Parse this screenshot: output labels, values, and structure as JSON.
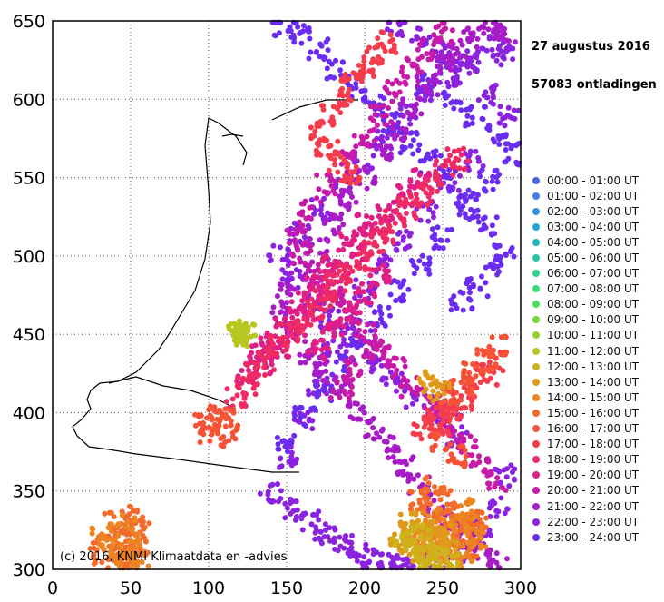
{
  "chart_data": {
    "type": "scatter",
    "title": "",
    "date_label": "27 augustus 2016",
    "count_label": "57083 ontladingen",
    "credit": "(c) 2016, KNMI Klimaatdata en -advies",
    "xlabel": "",
    "ylabel": "",
    "xlim": [
      0,
      300
    ],
    "ylim": [
      300,
      650
    ],
    "x_ticks": [
      "0",
      "50",
      "100",
      "150",
      "200",
      "250",
      "300"
    ],
    "y_ticks": [
      "300",
      "350",
      "400",
      "450",
      "500",
      "550",
      "600",
      "650"
    ],
    "grid": true,
    "grid_style": "dotted",
    "legend_placement": "right",
    "legend": [
      {
        "label": "00:00 - 01:00 UT",
        "color": "#4a63e6"
      },
      {
        "label": "01:00 - 02:00 UT",
        "color": "#3f7ee8"
      },
      {
        "label": "02:00 - 03:00 UT",
        "color": "#2f95e2"
      },
      {
        "label": "03:00 - 04:00 UT",
        "color": "#1ea6d6"
      },
      {
        "label": "04:00 - 05:00 UT",
        "color": "#1cb8bf"
      },
      {
        "label": "05:00 - 06:00 UT",
        "color": "#22c8a2"
      },
      {
        "label": "06:00 - 07:00 UT",
        "color": "#2bd48a"
      },
      {
        "label": "07:00 - 08:00 UT",
        "color": "#36dc70"
      },
      {
        "label": "08:00 - 09:00 UT",
        "color": "#48e15a"
      },
      {
        "label": "09:00 - 10:00 UT",
        "color": "#6fdc3c"
      },
      {
        "label": "10:00 - 11:00 UT",
        "color": "#97d22c"
      },
      {
        "label": "11:00 - 12:00 UT",
        "color": "#b7c71f"
      },
      {
        "label": "12:00 - 13:00 UT",
        "color": "#cfb21a"
      },
      {
        "label": "13:00 - 14:00 UT",
        "color": "#e09a1b"
      },
      {
        "label": "14:00 - 15:00 UT",
        "color": "#ec8421"
      },
      {
        "label": "15:00 - 16:00 UT",
        "color": "#f26b2a"
      },
      {
        "label": "16:00 - 17:00 UT",
        "color": "#f55236"
      },
      {
        "label": "17:00 - 18:00 UT",
        "color": "#f43c4a"
      },
      {
        "label": "18:00 - 19:00 UT",
        "color": "#ef2b64"
      },
      {
        "label": "19:00 - 20:00 UT",
        "color": "#e01f86"
      },
      {
        "label": "20:00 - 21:00 UT",
        "color": "#c81aa8"
      },
      {
        "label": "21:00 - 22:00 UT",
        "color": "#a81cc8"
      },
      {
        "label": "22:00 - 23:00 UT",
        "color": "#8a22df"
      },
      {
        "label": "23:00 - 24:00 UT",
        "color": "#6a2cf0"
      }
    ],
    "series": [
      {
        "color_index": 22,
        "x": [
          220,
          235,
          250,
          265,
          280,
          292,
          270,
          255,
          240,
          225,
          210,
          200,
          190,
          180,
          170,
          160,
          150,
          140,
          155,
          165,
          175,
          185,
          195,
          205,
          215,
          230,
          245,
          260,
          275,
          285,
          290,
          260,
          245,
          232,
          218,
          205,
          192,
          178,
          165,
          152,
          145,
          158,
          172,
          186,
          200,
          212,
          226,
          240,
          254,
          268,
          282,
          288
        ],
        "y": [
          645,
          640,
          630,
          618,
          602,
          590,
          560,
          545,
          528,
          510,
          495,
          478,
          460,
          440,
          418,
          395,
          372,
          350,
          338,
          330,
          322,
          315,
          310,
          306,
          304,
          302,
          305,
          312,
          325,
          340,
          360,
          385,
          400,
          410,
          420,
          432,
          446,
          460,
          472,
          486,
          500,
          515,
          530,
          545,
          560,
          575,
          590,
          605,
          615,
          625,
          635,
          628
        ]
      },
      {
        "color_index": 23,
        "x": [
          240,
          255,
          270,
          285,
          295,
          280,
          265,
          250,
          235,
          222,
          210,
          198,
          186,
          174,
          162,
          150,
          262,
          272,
          282,
          290,
          278,
          266,
          254,
          242,
          230,
          218,
          206,
          194,
          182,
          170,
          158,
          148
        ],
        "y": [
          610,
          600,
          590,
          578,
          565,
          548,
          530,
          512,
          494,
          478,
          462,
          446,
          430,
          414,
          398,
          382,
          470,
          480,
          492,
          505,
          520,
          535,
          548,
          560,
          572,
          584,
          596,
          608,
          620,
          632,
          642,
          646
        ]
      },
      {
        "color_index": 21,
        "x": [
          180,
          190,
          200,
          210,
          220,
          230,
          240,
          250,
          260,
          270,
          280,
          290,
          170,
          160,
          150,
          145,
          155,
          165,
          175,
          185,
          195,
          205,
          215,
          225,
          235,
          245,
          255,
          265,
          275,
          285
        ],
        "y": [
          520,
          535,
          550,
          565,
          580,
          595,
          610,
          622,
          632,
          640,
          645,
          642,
          505,
          490,
          475,
          462,
          450,
          438,
          426,
          414,
          402,
          390,
          378,
          366,
          354,
          342,
          330,
          320,
          312,
          306
        ]
      },
      {
        "color_index": 20,
        "x": [
          190,
          200,
          210,
          220,
          230,
          240,
          250,
          175,
          165,
          155,
          160,
          170,
          180,
          190,
          200,
          210,
          220,
          230,
          245,
          255,
          265,
          275,
          285,
          205,
          195,
          185
        ],
        "y": [
          560,
          575,
          590,
          605,
          620,
          632,
          642,
          545,
          530,
          515,
          500,
          488,
          476,
          464,
          452,
          440,
          428,
          416,
          404,
          392,
          380,
          368,
          356,
          440,
          428,
          416
        ]
      },
      {
        "color_index": 19,
        "x": [
          150,
          160,
          170,
          180,
          190,
          200,
          140,
          130,
          125,
          135,
          145,
          155,
          165,
          175,
          185,
          195,
          205,
          215,
          225,
          235,
          170,
          180,
          190,
          200,
          210
        ],
        "y": [
          460,
          472,
          484,
          496,
          508,
          520,
          448,
          436,
          424,
          430,
          442,
          454,
          466,
          478,
          490,
          502,
          514,
          526,
          538,
          550,
          440,
          452,
          464,
          476,
          488
        ]
      },
      {
        "color_index": 18,
        "x": [
          118,
          125,
          130,
          138,
          145,
          152,
          160,
          168,
          175,
          182,
          190,
          198,
          205,
          212,
          220,
          228,
          236,
          244,
          252,
          260
        ],
        "y": [
          410,
          418,
          426,
          434,
          442,
          450,
          458,
          466,
          474,
          482,
          490,
          498,
          506,
          514,
          522,
          530,
          538,
          546,
          554,
          562
        ]
      },
      {
        "color_index": 17,
        "x": [
          170,
          178,
          185,
          192,
          199,
          206,
          213,
          248,
          255,
          262,
          270,
          278,
          286,
          176,
          183,
          190,
          238,
          245,
          252
        ],
        "y": [
          580,
          590,
          600,
          610,
          620,
          628,
          636,
          392,
          400,
          408,
          416,
          424,
          432,
          570,
          560,
          550,
          390,
          398,
          405
        ]
      },
      {
        "color_index": 16,
        "x": [
          96,
          110,
          100,
          105,
          112,
          255,
          262,
          270,
          278,
          286,
          250,
          258
        ],
        "y": [
          392,
          395,
          388,
          400,
          385,
          410,
          418,
          426,
          434,
          442,
          380,
          372
        ]
      },
      {
        "color_index": 15,
        "x": [
          235,
          242,
          250,
          258,
          266,
          274,
          245,
          253,
          261,
          269,
          40,
          45,
          50,
          55,
          35,
          42,
          48,
          52,
          58,
          30
        ],
        "y": [
          345,
          338,
          330,
          322,
          315,
          330,
          352,
          344,
          336,
          328,
          330,
          320,
          312,
          326,
          318,
          306,
          302,
          334,
          316,
          310
        ]
      },
      {
        "color_index": 14,
        "x": [
          240,
          248,
          256,
          264,
          272,
          252,
          260,
          268,
          244,
          236,
          45,
          50,
          38,
          55,
          32,
          47
        ],
        "y": [
          318,
          312,
          306,
          312,
          320,
          326,
          332,
          338,
          332,
          326,
          308,
          316,
          314,
          306,
          322,
          328
        ]
      },
      {
        "color_index": 13,
        "x": [
          220,
          228,
          236,
          244,
          252,
          230,
          238,
          246,
          254,
          240,
          248
        ],
        "y": [
          322,
          316,
          310,
          316,
          322,
          330,
          326,
          320,
          314,
          420,
          414
        ]
      },
      {
        "color_index": 12,
        "x": [
          225,
          232,
          239,
          246,
          253,
          235,
          242
        ],
        "y": [
          318,
          312,
          306,
          310,
          304,
          324,
          300
        ]
      },
      {
        "color_index": 11,
        "x": [
          119,
          121,
          123
        ],
        "y": [
          450,
          448,
          452
        ]
      }
    ],
    "map_outline": true
  }
}
